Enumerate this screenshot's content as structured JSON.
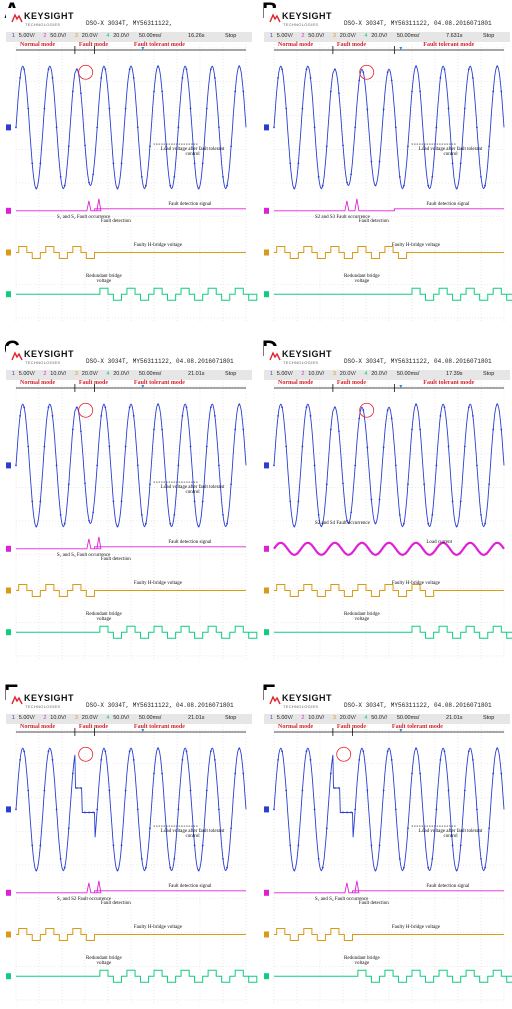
{
  "logo": {
    "brand": "KEYSIGHT",
    "sub": "TECHNOLOGIES"
  },
  "colors": {
    "ch1": "#2a3fd1",
    "ch2": "#e020d8",
    "ch3": "#d99a16",
    "ch4": "#10cc80",
    "mode": "#d2222d"
  },
  "panels": [
    {
      "letter": "A",
      "title": "DSO-X 3034T, MY56311122,",
      "channels": [
        "1",
        "5.00V/",
        "2",
        "50.0V/",
        "3",
        "20.0V/",
        "4",
        "20.0V/"
      ],
      "timebase": "50.00ms/",
      "time": "16.26s",
      "state": "Stop",
      "modes": {
        "normal": "Normal mode",
        "fault": "Fault mode",
        "tolerant": "Fault tolerant mode"
      },
      "load_note": "Load voltage after fault tolerant control",
      "fault_signal": "Fault detection signal",
      "occurrence": "S₁ and S₂ Fault occurrence",
      "detection": "Fault detection",
      "faulty": "Faulty H-bridge voltage",
      "redundant": "Redundant bridge voltage"
    },
    {
      "letter": "B",
      "title": "DSO-X 3034T, MY56311122, 04.08.2016071801",
      "channels": [
        "1",
        "5.00V/",
        "2",
        "50.0V/",
        "3",
        "20.0V/",
        "4",
        "20.0V/"
      ],
      "timebase": "50.00ms/",
      "time": "7.631s",
      "state": "Stop",
      "modes": {
        "normal": "Normal mode",
        "fault": "Fault mode",
        "tolerant": "Fault tolerant mode"
      },
      "load_note": "Load voltage after fault tolerant control",
      "fault_signal": "Fault detection signal",
      "occurrence": "S2 and S3 Fault occurrence",
      "detection": "Fault detection",
      "faulty": "Faulty H-bridge voltage",
      "redundant": "Redundant bridge voltage"
    },
    {
      "letter": "C",
      "title": "DSO-X 3034T, MY56311122, 04.08.2016071801",
      "channels": [
        "1",
        "5.00V/",
        "2",
        "10.0V/",
        "3",
        "20.0V/",
        "4",
        "20.0V/"
      ],
      "timebase": "50.00ms/",
      "time": "21.01s",
      "state": "Stop",
      "modes": {
        "normal": "Normal mode",
        "fault": "Fault mode",
        "tolerant": "Fault tolerant mode"
      },
      "load_note": "Load voltage after fault tolerant control",
      "fault_signal": "Fault detection signal",
      "occurrence": "S₁ and S₃ Fault occurrence",
      "detection": "Fault detection",
      "faulty": "Faulty H-bridge voltage",
      "redundant": "Redundant bridge voltage"
    },
    {
      "letter": "D",
      "title": "DSO-X 3034T, MY56311122, 04.08.2016071801",
      "channels": [
        "1",
        "5.00V/",
        "2",
        "10.0V/",
        "3",
        "20.0V/",
        "4",
        "20.0V/"
      ],
      "timebase": "50.00ms/",
      "time": "17.39s",
      "state": "Stop",
      "modes": {
        "normal": "Normal mode",
        "fault": "Fault mode",
        "tolerant": "Fault tolerant mode"
      },
      "load_note": "",
      "fault_signal": "Load current",
      "occurrence": "S2 and S4 Fault occurrence",
      "detection": "",
      "faulty": "Faulty H-bridge voltage",
      "redundant": "Redundant bridge voltage"
    },
    {
      "letter": "E",
      "title": "DSO-X 3034T, MY56311122, 04.08.2016071801",
      "channels": [
        "1",
        "5.00V/",
        "2",
        "10.0V/",
        "3",
        "20.0V/",
        "4",
        "50.0V/"
      ],
      "timebase": "50.00ms/",
      "time": "21.01s",
      "state": "Stop",
      "modes": {
        "normal": "Normal mode",
        "fault": "Fault mode",
        "tolerant": "Fault tolerant mode"
      },
      "load_note": "Load voltage after fault tolerant control",
      "fault_signal": "Fault detection signal",
      "occurrence": "S₁ and S2 Fault occurrence",
      "detection": "Fault detection",
      "faulty": "Faulty H-bridge voltage",
      "redundant": "Redundant bridge voltage"
    },
    {
      "letter": "F",
      "title": "DSO-X 3034T, MY56311122, 04.08.2016071801",
      "channels": [
        "1",
        "5.00V/",
        "2",
        "10.0V/",
        "3",
        "20.0V/",
        "4",
        "50.0V/"
      ],
      "timebase": "50.00ms/",
      "time": "21.01s",
      "state": "Stop",
      "modes": {
        "normal": "Normal mode",
        "fault": "Fault mode",
        "tolerant": "Fault tolerant mode"
      },
      "load_note": "Load voltage after fault tolerant control",
      "fault_signal": "Fault detection signal",
      "occurrence": "S₁ and S₄ Fault occurrence",
      "detection": "Fault detection",
      "faulty": "Faulty H-bridge voltage",
      "redundant": "Redundant bridge voltage"
    }
  ]
}
